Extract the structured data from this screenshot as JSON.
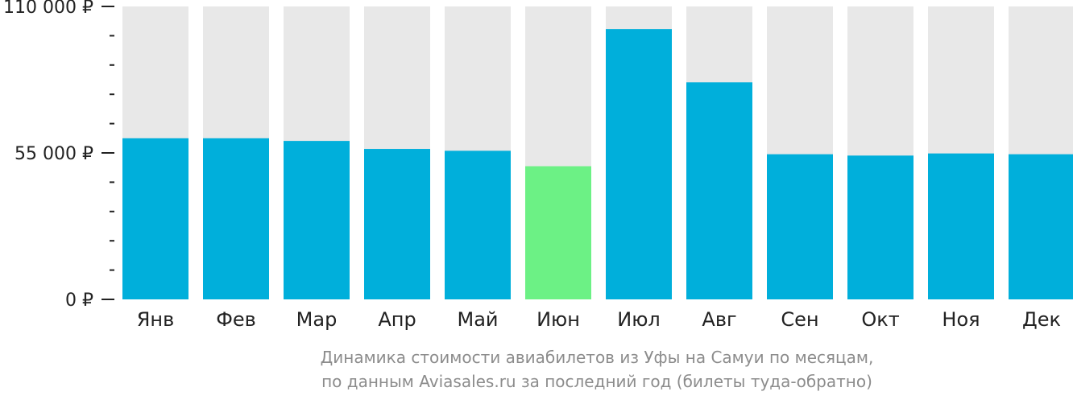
{
  "chart_data": {
    "type": "bar",
    "categories": [
      "Янв",
      "Фев",
      "Мар",
      "Апр",
      "Май",
      "Июн",
      "Июл",
      "Авг",
      "Сен",
      "Окт",
      "Ноя",
      "Дек"
    ],
    "values": [
      60500,
      60500,
      59500,
      56500,
      55800,
      50000,
      101500,
      81500,
      54500,
      54000,
      54800,
      54500
    ],
    "highlight_index": 5,
    "ylim": [
      0,
      110000
    ],
    "yticks": [
      {
        "value": 0,
        "label": "0 ₽"
      },
      {
        "value": 55000,
        "label": "55 000 ₽"
      },
      {
        "value": 110000,
        "label": "110 000 ₽"
      }
    ],
    "minor_tick_step": 11000,
    "colors": {
      "bar": "#00afdb",
      "highlight": "#6cf185",
      "background_bar": "#e8e8e8",
      "axis": "#222222"
    },
    "caption": [
      "Динамика стоимости авиабилетов из Уфы на Самуи по месяцам,",
      "по данным Aviasales.ru за последний год (билеты туда-обратно)"
    ]
  }
}
